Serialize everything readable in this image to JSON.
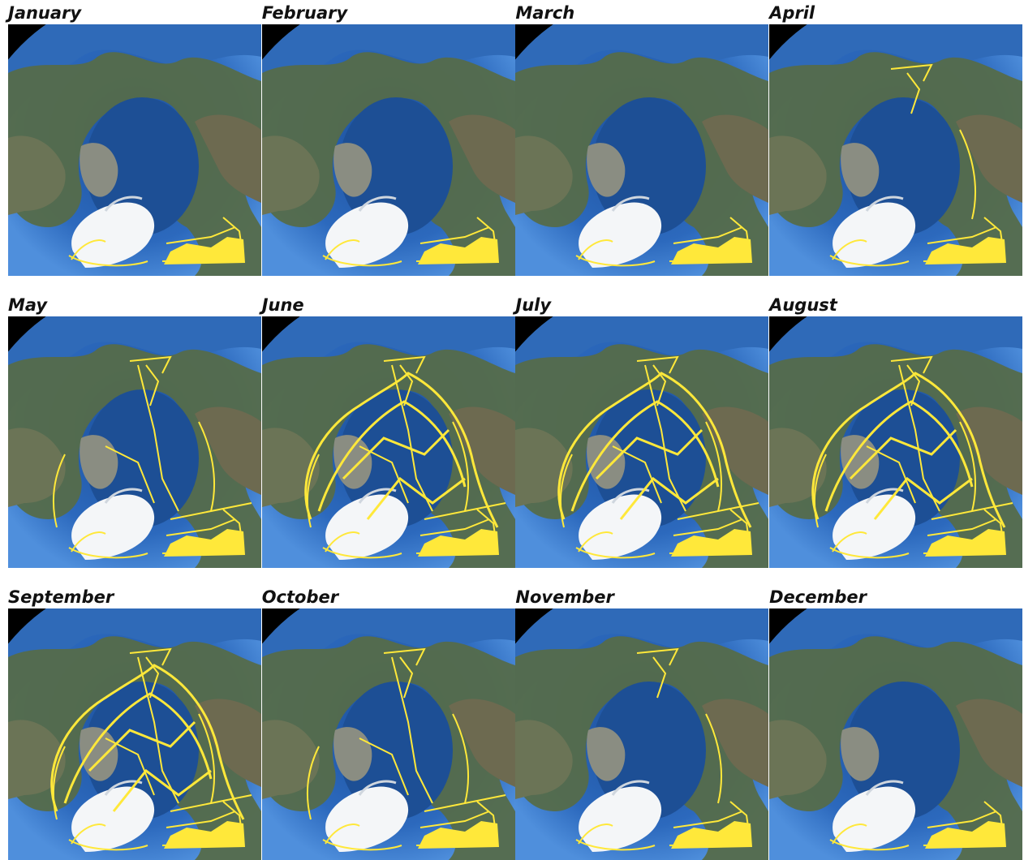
{
  "panels": [
    {
      "label": "January"
    },
    {
      "label": "February"
    },
    {
      "label": "March"
    },
    {
      "label": "April"
    },
    {
      "label": "May"
    },
    {
      "label": "June"
    },
    {
      "label": "July"
    },
    {
      "label": "August"
    },
    {
      "label": "September"
    },
    {
      "label": "October"
    },
    {
      "label": "November"
    },
    {
      "label": "December"
    }
  ]
}
